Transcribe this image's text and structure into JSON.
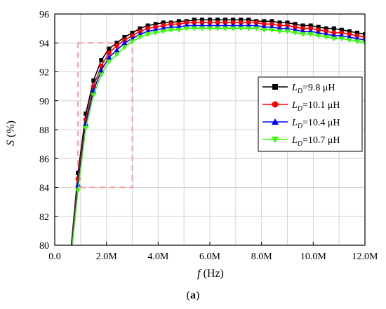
{
  "chart_data": {
    "type": "line",
    "xlabel_var": "f",
    "xlabel_unit": " (Hz)",
    "ylabel_var": "S",
    "ylabel_unit": " (%)",
    "caption_open": "(",
    "caption_letter": "a",
    "caption_close": ")",
    "xlim": [
      0,
      12000000
    ],
    "ylim": [
      80,
      96
    ],
    "xticks": [
      0,
      2000000,
      4000000,
      6000000,
      8000000,
      10000000,
      12000000
    ],
    "xtick_labels": [
      "0.0",
      "2.0M",
      "4.0M",
      "6.0M",
      "8.0M",
      "10.0M",
      "12.0M"
    ],
    "yticks": [
      80,
      82,
      84,
      86,
      88,
      90,
      92,
      94,
      96
    ],
    "ytick_labels": [
      "80",
      "82",
      "84",
      "86",
      "88",
      "90",
      "92",
      "94",
      "96"
    ],
    "grid": true,
    "legend_position": "right",
    "zoom_box": {
      "x": [
        900000,
        3000000
      ],
      "y": [
        84,
        94
      ]
    },
    "x": [
      600000,
      900000,
      1200000,
      1500000,
      1800000,
      2100000,
      2400000,
      2700000,
      3000000,
      3300000,
      3600000,
      3900000,
      4200000,
      4500000,
      4800000,
      5100000,
      5400000,
      5700000,
      6000000,
      6300000,
      6600000,
      6900000,
      7200000,
      7500000,
      7800000,
      8100000,
      8400000,
      8700000,
      9000000,
      9300000,
      9600000,
      9900000,
      10200000,
      10500000,
      10800000,
      11100000,
      11400000,
      11700000,
      12000000
    ],
    "series": [
      {
        "name": "9.8 μH",
        "color": "#000000",
        "marker": "square",
        "values": [
          79.2,
          85.0,
          89.1,
          91.4,
          92.8,
          93.6,
          94.0,
          94.4,
          94.7,
          95.0,
          95.2,
          95.3,
          95.4,
          95.4,
          95.5,
          95.5,
          95.6,
          95.6,
          95.6,
          95.6,
          95.6,
          95.6,
          95.6,
          95.6,
          95.5,
          95.5,
          95.5,
          95.4,
          95.4,
          95.3,
          95.2,
          95.2,
          95.1,
          95.0,
          95.0,
          94.9,
          94.8,
          94.7,
          94.6
        ]
      },
      {
        "name": "10.1 μH",
        "color": "#ff0000",
        "marker": "circle",
        "values": [
          79.0,
          84.6,
          88.7,
          91.0,
          92.4,
          93.3,
          93.8,
          94.2,
          94.5,
          94.8,
          95.0,
          95.1,
          95.2,
          95.3,
          95.3,
          95.4,
          95.4,
          95.4,
          95.4,
          95.4,
          95.4,
          95.4,
          95.4,
          95.4,
          95.4,
          95.3,
          95.3,
          95.2,
          95.2,
          95.1,
          95.0,
          95.0,
          94.9,
          94.8,
          94.7,
          94.7,
          94.6,
          94.5,
          94.4
        ]
      },
      {
        "name": "10.4 μH",
        "color": "#0000ff",
        "marker": "triangle-up",
        "values": [
          78.8,
          84.2,
          88.4,
          90.7,
          92.1,
          93.0,
          93.5,
          94.0,
          94.3,
          94.6,
          94.8,
          94.9,
          95.0,
          95.1,
          95.1,
          95.2,
          95.2,
          95.2,
          95.2,
          95.2,
          95.2,
          95.2,
          95.2,
          95.2,
          95.2,
          95.1,
          95.1,
          95.0,
          95.0,
          94.9,
          94.8,
          94.8,
          94.7,
          94.6,
          94.5,
          94.5,
          94.4,
          94.3,
          94.2
        ]
      },
      {
        "name": "10.7 μH",
        "color": "#33ff00",
        "marker": "triangle-down",
        "values": [
          78.6,
          83.8,
          88.1,
          90.4,
          91.8,
          92.7,
          93.2,
          93.7,
          94.1,
          94.4,
          94.6,
          94.7,
          94.8,
          94.9,
          94.9,
          95.0,
          95.0,
          95.0,
          95.0,
          95.0,
          95.0,
          95.0,
          95.0,
          95.0,
          95.0,
          94.9,
          94.9,
          94.8,
          94.8,
          94.7,
          94.6,
          94.6,
          94.5,
          94.4,
          94.3,
          94.3,
          94.2,
          94.1,
          94.0
        ]
      }
    ]
  },
  "legend_var": "L",
  "legend_sub": "D",
  "legend_eq": "="
}
